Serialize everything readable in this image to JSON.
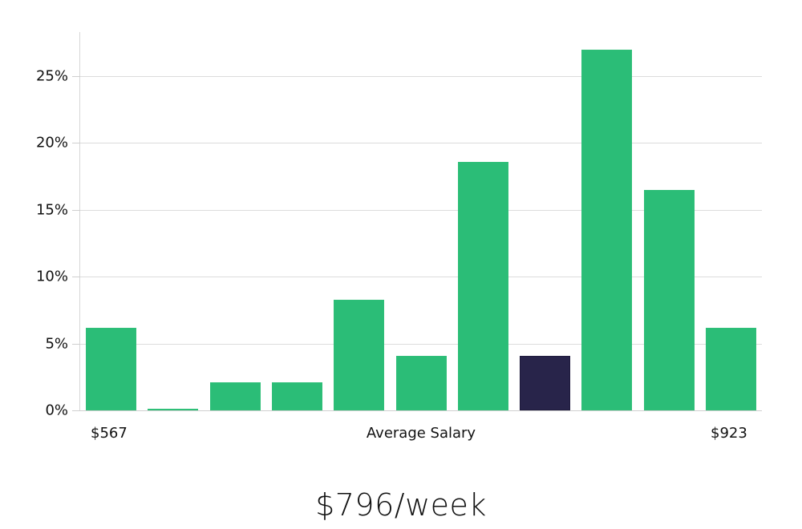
{
  "chart_data": {
    "type": "bar",
    "title": "",
    "xlabel": "Average Salary",
    "ylabel": "",
    "x_min_label": "$567",
    "x_max_label": "$923",
    "categories": [
      "bin1",
      "bin2",
      "bin3",
      "bin4",
      "bin5",
      "bin6",
      "bin7",
      "bin8",
      "bin9",
      "bin10",
      "bin11"
    ],
    "values": [
      6.2,
      0.1,
      2.1,
      2.1,
      8.3,
      4.1,
      18.6,
      4.1,
      27.0,
      16.5,
      6.2
    ],
    "highlight_index": 7,
    "ylim": [
      0,
      28
    ],
    "yticks": [
      "0%",
      "5%",
      "10%",
      "15%",
      "20%",
      "25%"
    ],
    "ytick_values": [
      0,
      5,
      10,
      15,
      20,
      25
    ],
    "grid": true,
    "legend": null,
    "colors": {
      "bar": "#2bbd77",
      "highlight": "#28244a",
      "grid": "#dcdcdc"
    }
  },
  "summary": {
    "value_label": "$796/week"
  }
}
